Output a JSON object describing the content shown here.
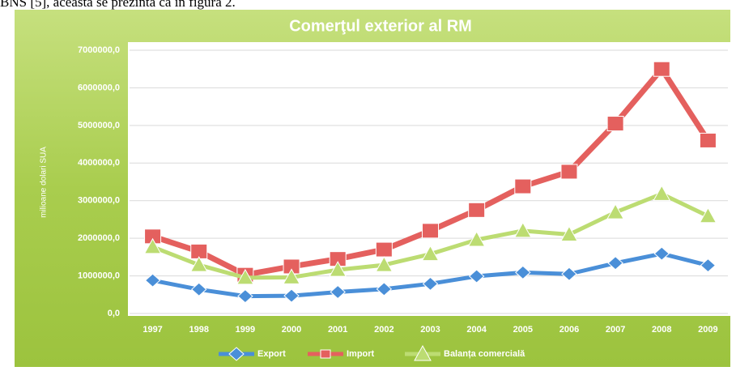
{
  "document_text": "BNS [5], aceasta se prezintă ca în figura 2.",
  "chart_data": {
    "type": "line",
    "title": "Comerţul exterior al RM",
    "y_label": "milioane dolari SUA",
    "categories": [
      "1997",
      "1998",
      "1999",
      "2000",
      "2001",
      "2002",
      "2003",
      "2004",
      "2005",
      "2006",
      "2007",
      "2008",
      "2009"
    ],
    "series": [
      {
        "name": "Export",
        "color": "#4a8fd8",
        "marker": "diamond",
        "values": [
          880000,
          640000,
          460000,
          470000,
          570000,
          650000,
          790000,
          990000,
          1090000,
          1050000,
          1340000,
          1590000,
          1280000
        ]
      },
      {
        "name": "Import",
        "color": "#e4605e",
        "marker": "square",
        "values": [
          2050000,
          1650000,
          1030000,
          1250000,
          1450000,
          1700000,
          2200000,
          2750000,
          3380000,
          3770000,
          5050000,
          6500000,
          4600000
        ]
      },
      {
        "name": "Balanța comercială",
        "color": "#bcdc72",
        "marker": "triangle",
        "values": [
          1770000,
          1290000,
          950000,
          960000,
          1160000,
          1290000,
          1580000,
          1960000,
          2200000,
          2100000,
          2690000,
          3180000,
          2590000
        ]
      }
    ],
    "ylim": [
      0,
      7000000
    ],
    "yticks": [
      {
        "value": 0,
        "label": "0,0"
      },
      {
        "value": 1000000,
        "label": "1000000,0"
      },
      {
        "value": 2000000,
        "label": "2000000,0"
      },
      {
        "value": 3000000,
        "label": "3000000,0"
      },
      {
        "value": 4000000,
        "label": "4000000,0"
      },
      {
        "value": 5000000,
        "label": "5000000,0"
      },
      {
        "value": 6000000,
        "label": "6000000,0"
      },
      {
        "value": 7000000,
        "label": "7000000,0"
      }
    ],
    "grid": true,
    "legend": "bottom"
  }
}
